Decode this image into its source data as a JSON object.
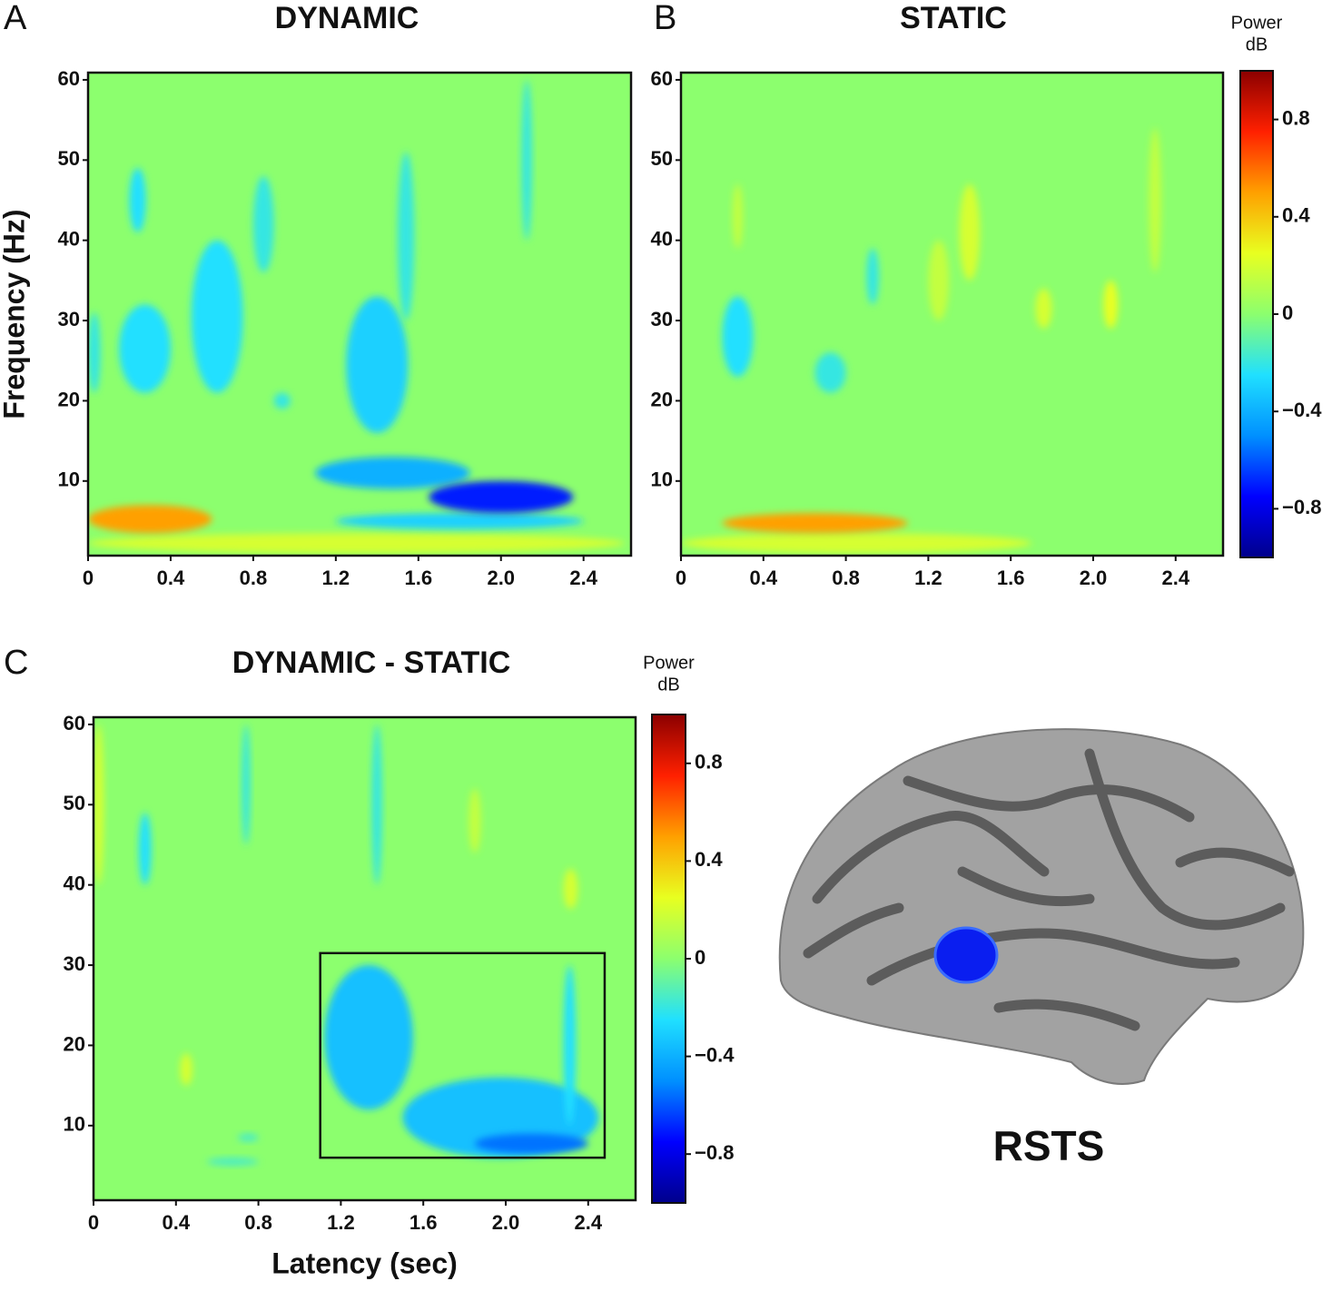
{
  "chart_data": [
    {
      "type": "heatmap",
      "letter": "A",
      "title": "DYNAMIC",
      "y_label": "Frequency (Hz)",
      "xlim": [
        0,
        2.63
      ],
      "ylim": [
        0.7,
        60.9
      ],
      "xticks": [
        0,
        0.4,
        0.8,
        1.2,
        1.6,
        {
          "value": 2,
          "label": "2.0"
        },
        2.4
      ],
      "yticks": [
        10,
        20,
        30,
        40,
        50,
        60
      ],
      "clim": [
        -1,
        1
      ],
      "colormap": [
        "#00008b",
        "#0000ff",
        "#0090ff",
        "#20e0ff",
        "#8cff6e",
        "#e8ff20",
        "#ffa000",
        "#ff2000",
        "#8b0000"
      ],
      "regions": [
        {
          "x": [
            0,
            2.6
          ],
          "y": [
            1,
            3.5
          ],
          "value": 0.2
        },
        {
          "x": [
            0,
            0.6
          ],
          "y": [
            3.5,
            7
          ],
          "value": 0.5
        },
        {
          "x": [
            1.1,
            1.85
          ],
          "y": [
            9,
            13
          ],
          "value": -0.4
        },
        {
          "x": [
            1.2,
            2.4
          ],
          "y": [
            4,
            6
          ],
          "value": -0.3
        },
        {
          "x": [
            1.65,
            2.35
          ],
          "y": [
            6,
            10
          ],
          "value": -0.7
        },
        {
          "x": [
            1.25,
            1.55
          ],
          "y": [
            16,
            33
          ],
          "value": -0.3
        },
        {
          "x": [
            0.5,
            0.75
          ],
          "y": [
            21,
            40
          ],
          "value": -0.25
        },
        {
          "x": [
            0.15,
            0.4
          ],
          "y": [
            21,
            32
          ],
          "value": -0.25
        },
        {
          "x": [
            0.2,
            0.28
          ],
          "y": [
            41,
            49
          ],
          "value": -0.25
        },
        {
          "x": [
            0.8,
            0.9
          ],
          "y": [
            36,
            48
          ],
          "value": -0.2
        },
        {
          "x": [
            1.5,
            1.58
          ],
          "y": [
            30,
            51
          ],
          "value": -0.2
        },
        {
          "x": [
            2.1,
            2.15
          ],
          "y": [
            40,
            60
          ],
          "value": -0.2
        },
        {
          "x": [
            0.9,
            0.98
          ],
          "y": [
            19,
            21
          ],
          "value": -0.2
        },
        {
          "x": [
            0,
            0.06
          ],
          "y": [
            21,
            31
          ],
          "value": -0.2
        }
      ]
    },
    {
      "type": "heatmap",
      "letter": "B",
      "title": "STATIC",
      "xlim": [
        0,
        2.63
      ],
      "ylim": [
        0.7,
        60.9
      ],
      "xticks": [
        0,
        0.4,
        0.8,
        1.2,
        1.6,
        {
          "value": 2,
          "label": "2.0"
        },
        2.4
      ],
      "yticks": [
        10,
        20,
        30,
        40,
        50,
        60
      ],
      "clim": [
        -1,
        1
      ],
      "colormap": [
        "#00008b",
        "#0000ff",
        "#0090ff",
        "#20e0ff",
        "#8cff6e",
        "#e8ff20",
        "#ffa000",
        "#ff2000",
        "#8b0000"
      ],
      "colorbar_label": [
        "Power",
        "dB"
      ],
      "colorbar_ticks": [
        {
          "value": -0.8,
          "label": "−0.8"
        },
        {
          "value": -0.4,
          "label": "−0.4"
        },
        0,
        0.4,
        0.8
      ],
      "regions": [
        {
          "x": [
            0,
            1.7
          ],
          "y": [
            1,
            3.5
          ],
          "value": 0.2
        },
        {
          "x": [
            0.2,
            1.1
          ],
          "y": [
            3.5,
            6
          ],
          "value": 0.5
        },
        {
          "x": [
            0.2,
            0.35
          ],
          "y": [
            23,
            33
          ],
          "value": -0.25
        },
        {
          "x": [
            0.65,
            0.8
          ],
          "y": [
            21,
            26
          ],
          "value": -0.2
        },
        {
          "x": [
            1.35,
            1.45
          ],
          "y": [
            35,
            47
          ],
          "value": 0.2
        },
        {
          "x": [
            1.2,
            1.3
          ],
          "y": [
            30,
            40
          ],
          "value": 0.15
        },
        {
          "x": [
            1.72,
            1.8
          ],
          "y": [
            29,
            34
          ],
          "value": 0.2
        },
        {
          "x": [
            2.05,
            2.12
          ],
          "y": [
            29,
            35
          ],
          "value": 0.25
        },
        {
          "x": [
            2.27,
            2.33
          ],
          "y": [
            36,
            54
          ],
          "value": 0.15
        },
        {
          "x": [
            0.9,
            0.96
          ],
          "y": [
            32,
            39
          ],
          "value": -0.2
        },
        {
          "x": [
            0.25,
            0.3
          ],
          "y": [
            39,
            47
          ],
          "value": 0.15
        }
      ]
    },
    {
      "type": "heatmap",
      "letter": "C",
      "title": "DYNAMIC - STATIC",
      "x_label": "Latency (sec)",
      "xlim": [
        0,
        2.63
      ],
      "ylim": [
        0.7,
        60.9
      ],
      "xticks": [
        0,
        0.4,
        0.8,
        1.2,
        1.6,
        {
          "value": 2,
          "label": "2.0"
        },
        2.4
      ],
      "yticks": [
        10,
        20,
        30,
        40,
        50,
        60
      ],
      "clim": [
        -1,
        1
      ],
      "colormap": [
        "#00008b",
        "#0000ff",
        "#0090ff",
        "#20e0ff",
        "#8cff6e",
        "#e8ff20",
        "#ffa000",
        "#ff2000",
        "#8b0000"
      ],
      "colorbar_label": [
        "Power",
        "dB"
      ],
      "colorbar_ticks": [
        {
          "value": -0.8,
          "label": "−0.8"
        },
        {
          "value": -0.4,
          "label": "−0.4"
        },
        0,
        0.4,
        0.8
      ],
      "box": {
        "x": [
          1.1,
          2.48
        ],
        "y": [
          6,
          31.5
        ]
      },
      "regions": [
        {
          "x": [
            1.12,
            1.55
          ],
          "y": [
            12,
            30
          ],
          "value": -0.35
        },
        {
          "x": [
            1.5,
            2.45
          ],
          "y": [
            6,
            16
          ],
          "value": -0.35
        },
        {
          "x": [
            1.85,
            2.4
          ],
          "y": [
            6.5,
            9
          ],
          "value": -0.55
        },
        {
          "x": [
            0,
            0.05
          ],
          "y": [
            40,
            60
          ],
          "value": 0.2
        },
        {
          "x": [
            0.22,
            0.28
          ],
          "y": [
            40,
            49
          ],
          "value": -0.25
        },
        {
          "x": [
            0.42,
            0.48
          ],
          "y": [
            15,
            19
          ],
          "value": 0.2
        },
        {
          "x": [
            0.55,
            0.8
          ],
          "y": [
            5,
            6
          ],
          "value": -0.15
        },
        {
          "x": [
            0.7,
            0.8
          ],
          "y": [
            8,
            9
          ],
          "value": -0.15
        },
        {
          "x": [
            2.28,
            2.34
          ],
          "y": [
            10,
            30
          ],
          "value": -0.25
        },
        {
          "x": [
            2.28,
            2.35
          ],
          "y": [
            37,
            42
          ],
          "value": 0.2
        },
        {
          "x": [
            1.82,
            1.88
          ],
          "y": [
            44,
            52
          ],
          "value": 0.15
        },
        {
          "x": [
            0.72,
            0.76
          ],
          "y": [
            45,
            60
          ],
          "value": -0.2
        },
        {
          "x": [
            1.35,
            1.4
          ],
          "y": [
            40,
            60
          ],
          "value": -0.2
        }
      ]
    }
  ],
  "brain": {
    "label": "RSTS"
  }
}
